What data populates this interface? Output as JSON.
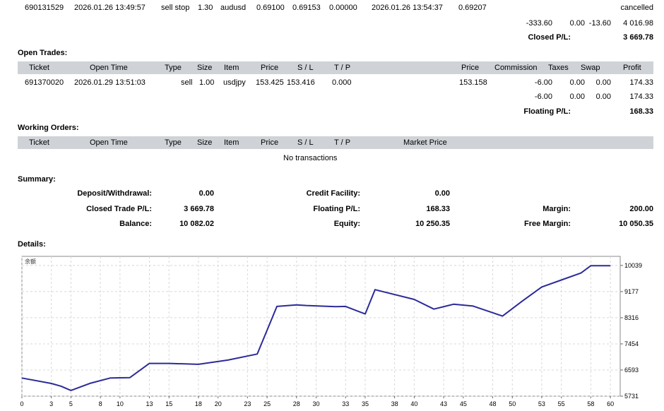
{
  "closed_order": {
    "ticket": "690131529",
    "open_time": "2026.01.26 13:49:57",
    "type": "sell stop",
    "size": "1.30",
    "item": "audusd",
    "price": "0.69100",
    "sl": "0.69153",
    "tp": "0.00000",
    "close_time": "2026.01.26 13:54:37",
    "close_price": "0.69207",
    "state": "cancelled"
  },
  "closed_totals": {
    "commission": "-333.60",
    "taxes": "0.00",
    "swap": "-13.60",
    "profit": "4 016.98",
    "closed_pl_label": "Closed P/L:",
    "closed_pl_value": "3 669.78"
  },
  "open_trades": {
    "title": "Open Trades:",
    "headers": {
      "ticket": "Ticket",
      "open_time": "Open Time",
      "type": "Type",
      "size": "Size",
      "item": "Item",
      "price": "Price",
      "sl": "S / L",
      "tp": "T / P",
      "price2": "Price",
      "commission": "Commission",
      "taxes": "Taxes",
      "swap": "Swap",
      "profit": "Profit"
    },
    "row": {
      "ticket": "691370020",
      "open_time": "2026.01.29 13:51:03",
      "type": "sell",
      "size": "1.00",
      "item": "usdjpy",
      "price": "153.425",
      "sl": "153.416",
      "tp": "0.000",
      "price2": "153.158",
      "commission": "-6.00",
      "taxes": "0.00",
      "swap": "0.00",
      "profit": "174.33"
    },
    "totals": {
      "commission": "-6.00",
      "taxes": "0.00",
      "swap": "0.00",
      "profit": "174.33"
    },
    "floating_label": "Floating P/L:",
    "floating_value": "168.33"
  },
  "working_orders": {
    "title": "Working Orders:",
    "headers": {
      "ticket": "Ticket",
      "open_time": "Open Time",
      "type": "Type",
      "size": "Size",
      "item": "Item",
      "price": "Price",
      "sl": "S / L",
      "tp": "T / P",
      "market_price": "Market Price"
    },
    "empty": "No transactions"
  },
  "summary": {
    "title": "Summary:",
    "deposit_label": "Deposit/Withdrawal:",
    "deposit_value": "0.00",
    "credit_label": "Credit Facility:",
    "credit_value": "0.00",
    "closed_label": "Closed Trade P/L:",
    "closed_value": "3 669.78",
    "floating_label": "Floating P/L:",
    "floating_value": "168.33",
    "margin_label": "Margin:",
    "margin_value": "200.00",
    "balance_label": "Balance:",
    "balance_value": "10 082.02",
    "equity_label": "Equity:",
    "equity_value": "10 250.35",
    "free_margin_label": "Free Margin:",
    "free_margin_value": "10 050.35"
  },
  "details": {
    "title": "Details:"
  },
  "chart_data": {
    "type": "line",
    "legend": "余额",
    "line_color": "#2b2b9a",
    "grid": true,
    "xlim": [
      0,
      61
    ],
    "ylim": [
      5731,
      10339
    ],
    "x_ticks": [
      0,
      3,
      5,
      8,
      10,
      13,
      15,
      18,
      20,
      23,
      25,
      28,
      30,
      33,
      35,
      38,
      40,
      43,
      45,
      48,
      50,
      53,
      55,
      58,
      60
    ],
    "y_ticks": [
      5731,
      6593,
      7454,
      8316,
      9177,
      10039
    ],
    "x": [
      0,
      3,
      4,
      5,
      7,
      9,
      11,
      13,
      15,
      18,
      21,
      24,
      26,
      28,
      29,
      32,
      33,
      35,
      36,
      40,
      42,
      44,
      46,
      49,
      51,
      53,
      55,
      57,
      58,
      60
    ],
    "y": [
      6330,
      6150,
      6060,
      5920,
      6160,
      6330,
      6340,
      6810,
      6810,
      6780,
      6920,
      7120,
      8690,
      8740,
      8720,
      8680,
      8690,
      8440,
      9240,
      8920,
      8600,
      8760,
      8700,
      8370,
      8860,
      9330,
      9560,
      9790,
      10030,
      10030
    ]
  }
}
